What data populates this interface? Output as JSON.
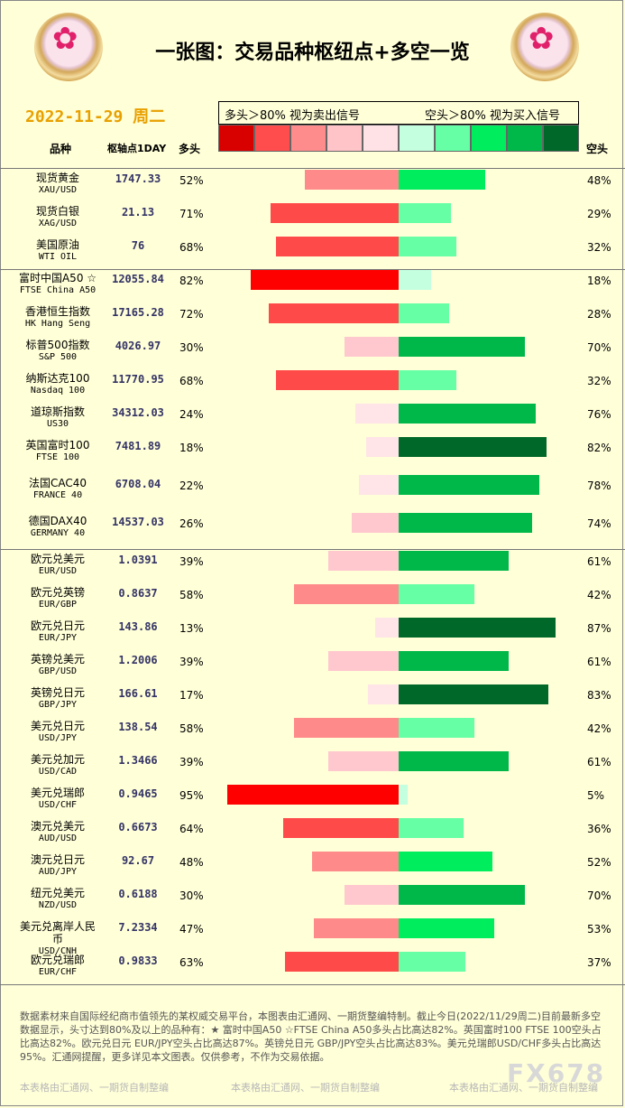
{
  "header": {
    "title": "一张图：交易品种枢纽点+多空一览",
    "date": "2022-11-29 周二",
    "long_signal": "多头＞80% 视为卖出信号",
    "short_signal": "空头＞80% 视为买入信号",
    "scale_colors": [
      "#d90000",
      "#ff4d4d",
      "#ff8c8c",
      "#ffc4c8",
      "#ffe2e6",
      "#c4ffe0",
      "#66ffa6",
      "#00ee5e",
      "#00b84a",
      "#006828"
    ]
  },
  "columns": {
    "name": "品种",
    "pivot": "枢轴点1DAY",
    "long": "多头",
    "short": "空头"
  },
  "rows": [
    {
      "name": "现货黄金",
      "code": "XAU/USD",
      "pivot": "1747.33",
      "long": 52,
      "short": 48,
      "long_pct": "52%",
      "short_pct": "48%"
    },
    {
      "name": "现货白银",
      "code": "XAG/USD",
      "pivot": "21.13",
      "long": 71,
      "short": 29,
      "long_pct": "71%",
      "short_pct": "29%"
    },
    {
      "name": "美国原油",
      "code": "WTI OIL",
      "pivot": "76",
      "long": 68,
      "short": 32,
      "long_pct": "68%",
      "short_pct": "32%"
    },
    {
      "name": "富时中国A50 ☆",
      "code": "FTSE China A50",
      "pivot": "12055.84",
      "long": 82,
      "short": 18,
      "long_pct": "82%",
      "short_pct": "18%"
    },
    {
      "name": "香港恒生指数",
      "code": "HK Hang Seng",
      "pivot": "17165.28",
      "long": 72,
      "short": 28,
      "long_pct": "72%",
      "short_pct": "28%"
    },
    {
      "name": "标普500指数",
      "code": "S&P 500",
      "pivot": "4026.97",
      "long": 30,
      "short": 70,
      "long_pct": "30%",
      "short_pct": "70%"
    },
    {
      "name": "纳斯达克100",
      "code": "Nasdaq 100",
      "pivot": "11770.95",
      "long": 68,
      "short": 32,
      "long_pct": "68%",
      "short_pct": "32%"
    },
    {
      "name": "道琼斯指数",
      "code": "US30",
      "pivot": "34312.03",
      "long": 24,
      "short": 76,
      "long_pct": "24%",
      "short_pct": "76%"
    },
    {
      "name": "英国富时100",
      "code": "FTSE 100",
      "pivot": "7481.89",
      "long": 18,
      "short": 82,
      "long_pct": "18%",
      "short_pct": "82%"
    },
    {
      "name": "法国CAC40",
      "code": "FRANCE 40",
      "pivot": "6708.04",
      "long": 22,
      "short": 78,
      "long_pct": "22%",
      "short_pct": "78%"
    },
    {
      "name": "德国DAX40",
      "code": "GERMANY 40",
      "pivot": "14537.03",
      "long": 26,
      "short": 74,
      "long_pct": "26%",
      "short_pct": "74%"
    },
    {
      "name": "欧元兑美元",
      "code": "EUR/USD",
      "pivot": "1.0391",
      "long": 39,
      "short": 61,
      "long_pct": "39%",
      "short_pct": "61%"
    },
    {
      "name": "欧元兑英镑",
      "code": "EUR/GBP",
      "pivot": "0.8637",
      "long": 58,
      "short": 42,
      "long_pct": "58%",
      "short_pct": "42%"
    },
    {
      "name": "欧元兑日元",
      "code": "EUR/JPY",
      "pivot": "143.86",
      "long": 13,
      "short": 87,
      "long_pct": "13%",
      "short_pct": "87%"
    },
    {
      "name": "英镑兑美元",
      "code": "GBP/USD",
      "pivot": "1.2006",
      "long": 39,
      "short": 61,
      "long_pct": "39%",
      "short_pct": "61%"
    },
    {
      "name": "英镑兑日元",
      "code": "GBP/JPY",
      "pivot": "166.61",
      "long": 17,
      "short": 83,
      "long_pct": "17%",
      "short_pct": "83%"
    },
    {
      "name": "美元兑日元",
      "code": "USD/JPY",
      "pivot": "138.54",
      "long": 58,
      "short": 42,
      "long_pct": "58%",
      "short_pct": "42%"
    },
    {
      "name": "美元兑加元",
      "code": "USD/CAD",
      "pivot": "1.3466",
      "long": 39,
      "short": 61,
      "long_pct": "39%",
      "short_pct": "61%"
    },
    {
      "name": "美元兑瑞郎",
      "code": "USD/CHF",
      "pivot": "0.9465",
      "long": 95,
      "short": 5,
      "long_pct": "95%",
      "short_pct": "5%"
    },
    {
      "name": "澳元兑美元",
      "code": "AUD/USD",
      "pivot": "0.6673",
      "long": 64,
      "short": 36,
      "long_pct": "64%",
      "short_pct": "36%"
    },
    {
      "name": "澳元兑日元",
      "code": "AUD/JPY",
      "pivot": "92.67",
      "long": 48,
      "short": 52,
      "long_pct": "48%",
      "short_pct": "52%"
    },
    {
      "name": "纽元兑美元",
      "code": "NZD/USD",
      "pivot": "0.6188",
      "long": 30,
      "short": 70,
      "long_pct": "30%",
      "short_pct": "70%"
    },
    {
      "name": "美元兑离岸人民币",
      "code": "USD/CNH",
      "pivot": "7.2334",
      "long": 47,
      "short": 53,
      "long_pct": "47%",
      "short_pct": "53%"
    },
    {
      "name": "欧元兑瑞郎",
      "code": "EUR/CHF",
      "pivot": "0.9833",
      "long": 63,
      "short": 37,
      "long_pct": "63%",
      "short_pct": "37%"
    }
  ],
  "chart_data": {
    "type": "bar",
    "categories": [
      "现货黄金",
      "现货白银",
      "美国原油",
      "富时中国A50 ☆",
      "香港恒生指数",
      "标普500指数",
      "纳斯达克100",
      "道琼斯指数",
      "英国富时100",
      "法国CAC40",
      "德国DAX40",
      "欧元兑美元",
      "欧元兑英镑",
      "欧元兑日元",
      "英镑兑美元",
      "英镑兑日元",
      "美元兑日元",
      "美元兑加元",
      "美元兑瑞郎",
      "澳元兑美元",
      "澳元兑日元",
      "纽元兑美元",
      "美元兑离岸人民币",
      "欧元兑瑞郎"
    ],
    "series": [
      {
        "name": "多头",
        "values": [
          52,
          71,
          68,
          82,
          72,
          30,
          68,
          24,
          18,
          22,
          26,
          39,
          58,
          13,
          39,
          17,
          58,
          39,
          95,
          64,
          48,
          30,
          47,
          63
        ]
      },
      {
        "name": "空头",
        "values": [
          48,
          29,
          32,
          18,
          28,
          70,
          32,
          76,
          82,
          78,
          74,
          61,
          42,
          87,
          61,
          83,
          42,
          61,
          5,
          36,
          52,
          70,
          53,
          37
        ]
      }
    ],
    "ylim": [
      0,
      100
    ]
  },
  "footer": {
    "note": "数据素材来自国际经纪商市值领先的某权威交易平台，本图表由汇通网、一期货整编特制。截止今日(2022/11/29周二)目前最新多空数据显示，头寸达到80%及以上的品种有：★ 富时中国A50 ☆FTSE China A50多头占比高达82%。英国富时100 FTSE 100空头占比高达82%。欧元兑日元 EUR/JPY空头占比高达87%。英镑兑日元 GBP/JPY空头占比高达83%。美元兑瑞郎USD/CHF多头占比高达95%。汇通网提醒，更多详见本文图表。仅供参考，不作为交易依据。",
    "watermark": "本表格由汇通网、一期货自制整编",
    "brand": "FX678"
  }
}
